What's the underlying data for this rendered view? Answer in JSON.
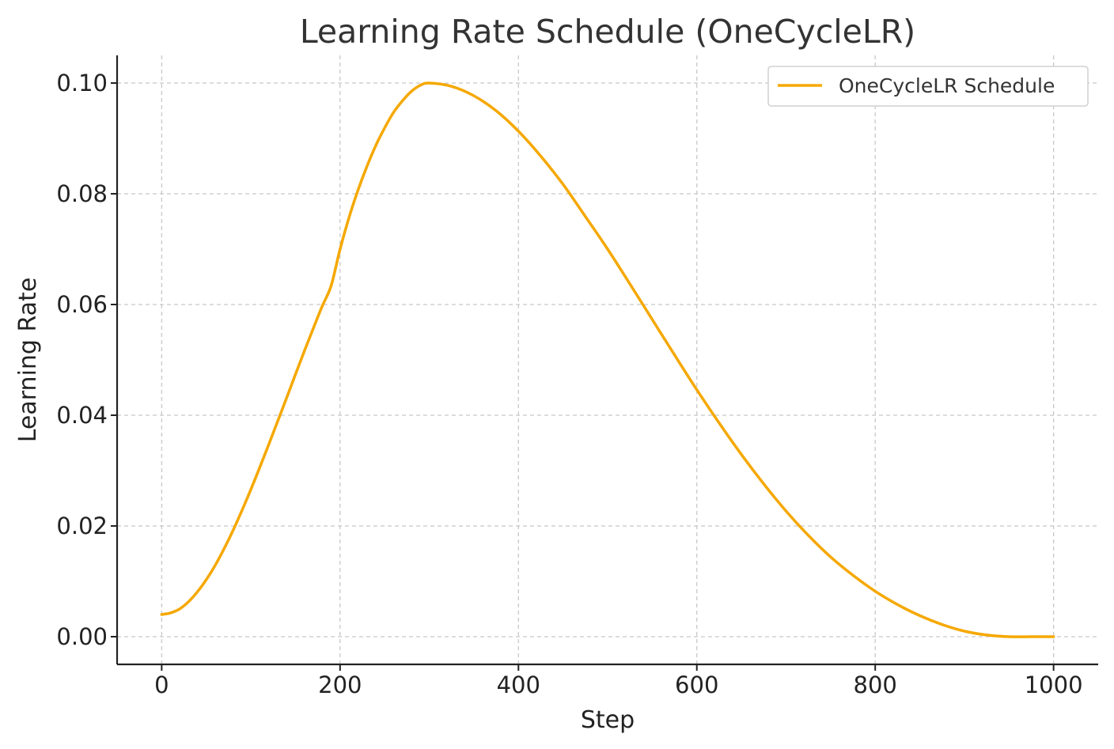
{
  "chart_data": {
    "type": "line",
    "title": "Learning Rate Schedule (OneCycleLR)",
    "xlabel": "Step",
    "ylabel": "Learning Rate",
    "xlim": [
      -50,
      1050
    ],
    "ylim": [
      -0.005,
      0.105
    ],
    "xticks": [
      0,
      200,
      400,
      600,
      800,
      1000
    ],
    "xtick_labels": [
      "0",
      "200",
      "400",
      "600",
      "800",
      "1000"
    ],
    "yticks": [
      0.0,
      0.02,
      0.04,
      0.06,
      0.08,
      0.1
    ],
    "ytick_labels": [
      "0.00",
      "0.02",
      "0.04",
      "0.06",
      "0.08",
      "0.10"
    ],
    "grid": true,
    "legend_position": "top-right",
    "series": [
      {
        "name": "OneCycleLR Schedule",
        "color": "#f5a800",
        "x": [
          0,
          10,
          20,
          30,
          40,
          50,
          60,
          70,
          80,
          90,
          100,
          110,
          120,
          130,
          140,
          150,
          160,
          170,
          180,
          190,
          200,
          210,
          220,
          230,
          240,
          250,
          260,
          270,
          280,
          290,
          300,
          325,
          350,
          375,
          400,
          425,
          450,
          475,
          500,
          525,
          550,
          575,
          600,
          625,
          650,
          675,
          700,
          725,
          750,
          775,
          800,
          825,
          850,
          875,
          900,
          925,
          950,
          975,
          1000
        ],
        "y": [
          0.004,
          0.0043,
          0.005,
          0.0063,
          0.0081,
          0.0103,
          0.0129,
          0.0159,
          0.0192,
          0.0228,
          0.0266,
          0.0306,
          0.0347,
          0.0389,
          0.0431,
          0.0474,
          0.0516,
          0.0557,
          0.0597,
          0.0634,
          0.07,
          0.0757,
          0.0806,
          0.0849,
          0.0887,
          0.0919,
          0.0947,
          0.0968,
          0.0985,
          0.0996,
          0.1,
          0.0994,
          0.0977,
          0.095,
          0.0913,
          0.0868,
          0.0817,
          0.0759,
          0.07,
          0.0637,
          0.0573,
          0.0509,
          0.0446,
          0.0386,
          0.0329,
          0.0276,
          0.0227,
          0.0183,
          0.0144,
          0.0111,
          0.0082,
          0.0058,
          0.0038,
          0.0022,
          0.001,
          0.0003,
          0.0,
          0.0,
          0.0
        ]
      }
    ]
  }
}
